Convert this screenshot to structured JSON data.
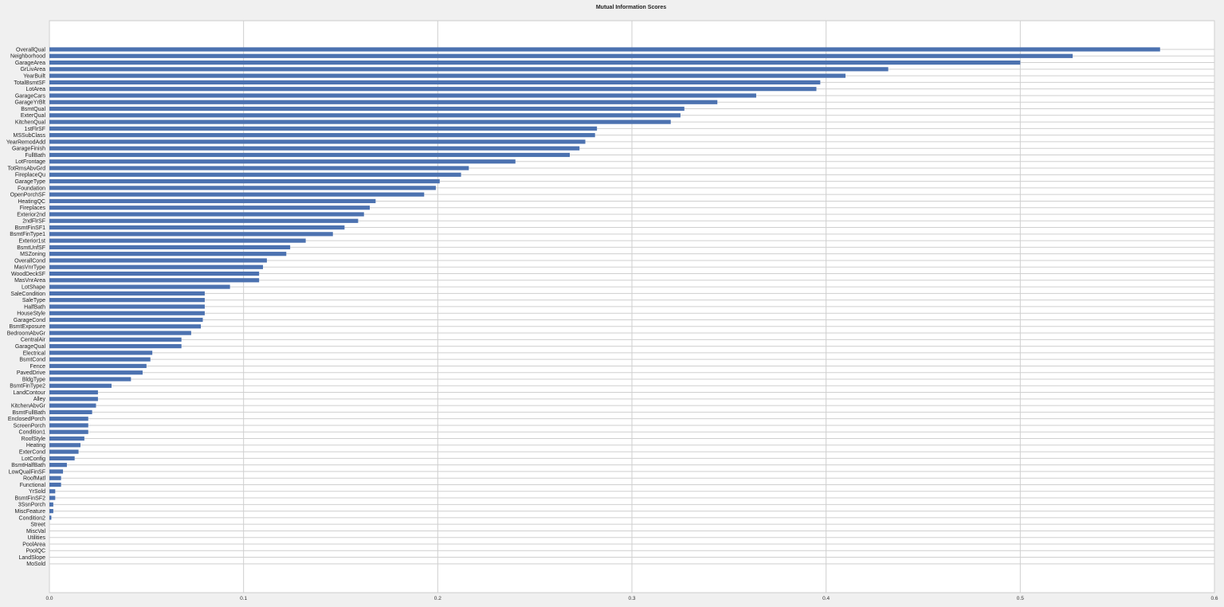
{
  "chart_data": {
    "type": "bar",
    "orientation": "horizontal",
    "title": "Mutual Information Scores",
    "xlabel": "",
    "ylabel": "",
    "xlim": [
      0,
      0.6
    ],
    "xticks": [
      "0.0",
      "0.1",
      "0.2",
      "0.3",
      "0.4",
      "0.5",
      "0.6"
    ],
    "xtick_values": [
      0,
      0.1,
      0.2,
      0.3,
      0.4,
      0.5,
      0.6
    ],
    "grid": true,
    "bar_color": "#4c72b0",
    "categories": [
      "OverallQual",
      "Neighborhood",
      "GarageArea",
      "GrLivArea",
      "YearBuilt",
      "TotalBsmtSF",
      "LotArea",
      "GarageCars",
      "GarageYrBlt",
      "BsmtQual",
      "ExterQual",
      "KitchenQual",
      "1stFlrSF",
      "MSSubClass",
      "YearRemodAdd",
      "GarageFinish",
      "FullBath",
      "LotFrontage",
      "TotRmsAbvGrd",
      "FireplaceQu",
      "GarageType",
      "Foundation",
      "OpenPorchSF",
      "HeatingQC",
      "Fireplaces",
      "Exterior2nd",
      "2ndFlrSF",
      "BsmtFinSF1",
      "BsmtFinType1",
      "Exterior1st",
      "BsmtUnfSF",
      "MSZoning",
      "OverallCond",
      "MasVnrType",
      "WoodDeckSF",
      "MasVnrArea",
      "LotShape",
      "SaleCondition",
      "SaleType",
      "HalfBath",
      "HouseStyle",
      "GarageCond",
      "BsmtExposure",
      "BedroomAbvGr",
      "CentralAir",
      "GarageQual",
      "Electrical",
      "BsmtCond",
      "Fence",
      "PavedDrive",
      "BldgType",
      "BsmtFinType2",
      "LandContour",
      "Alley",
      "KitchenAbvGr",
      "BsmtFullBath",
      "EnclosedPorch",
      "ScreenPorch",
      "Condition1",
      "RoofStyle",
      "Heating",
      "ExterCond",
      "LotConfig",
      "BsmtHalfBath",
      "LowQualFinSF",
      "RoofMatl",
      "Functional",
      "YrSold",
      "BsmtFinSF2",
      "3SsnPorch",
      "MiscFeature",
      "Condition2",
      "Street",
      "MiscVal",
      "Utilities",
      "PoolArea",
      "PoolQC",
      "LandSlope",
      "MoSold"
    ],
    "values": [
      0.572,
      0.527,
      0.5,
      0.432,
      0.41,
      0.397,
      0.395,
      0.364,
      0.344,
      0.327,
      0.325,
      0.32,
      0.282,
      0.281,
      0.276,
      0.273,
      0.268,
      0.24,
      0.216,
      0.212,
      0.201,
      0.199,
      0.193,
      0.168,
      0.165,
      0.162,
      0.159,
      0.152,
      0.146,
      0.132,
      0.124,
      0.122,
      0.112,
      0.11,
      0.108,
      0.108,
      0.093,
      0.08,
      0.08,
      0.08,
      0.08,
      0.079,
      0.078,
      0.073,
      0.068,
      0.068,
      0.053,
      0.052,
      0.05,
      0.048,
      0.042,
      0.032,
      0.025,
      0.025,
      0.024,
      0.022,
      0.02,
      0.02,
      0.02,
      0.018,
      0.016,
      0.015,
      0.013,
      0.009,
      0.007,
      0.006,
      0.006,
      0.003,
      0.003,
      0.002,
      0.002,
      0.001,
      0,
      0,
      0,
      0,
      0,
      0,
      0
    ]
  }
}
